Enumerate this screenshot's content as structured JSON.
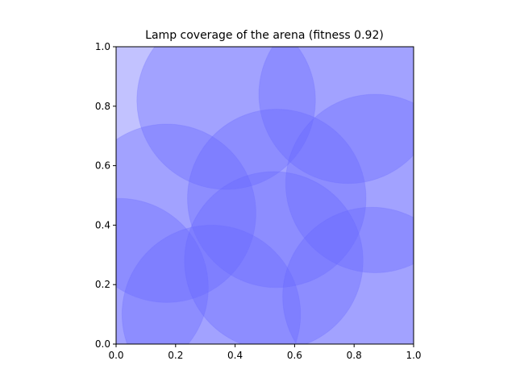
{
  "chart_data": {
    "type": "scatter",
    "title": "Lamp coverage of the arena (fitness 0.92)",
    "xlabel": "",
    "ylabel": "",
    "xlim": [
      0.0,
      1.0
    ],
    "ylim": [
      0.0,
      1.0
    ],
    "xticks": [
      "0.0",
      "0.2",
      "0.4",
      "0.6",
      "0.8",
      "1.0"
    ],
    "yticks": [
      "0.0",
      "0.2",
      "0.4",
      "0.6",
      "0.8",
      "1.0"
    ],
    "grid": false,
    "background_color": "#c2c2ff",
    "circle_color": "#6666ff",
    "circle_opacity": 0.35,
    "lamp_radius": 0.3,
    "lamps": [
      {
        "x": 0.37,
        "y": 0.82
      },
      {
        "x": 0.78,
        "y": 0.84
      },
      {
        "x": 0.17,
        "y": 0.44
      },
      {
        "x": 0.54,
        "y": 0.49
      },
      {
        "x": 0.87,
        "y": 0.54
      },
      {
        "x": 0.01,
        "y": 0.19
      },
      {
        "x": 0.32,
        "y": 0.1
      },
      {
        "x": 0.53,
        "y": 0.28
      },
      {
        "x": 0.86,
        "y": 0.16
      }
    ]
  }
}
